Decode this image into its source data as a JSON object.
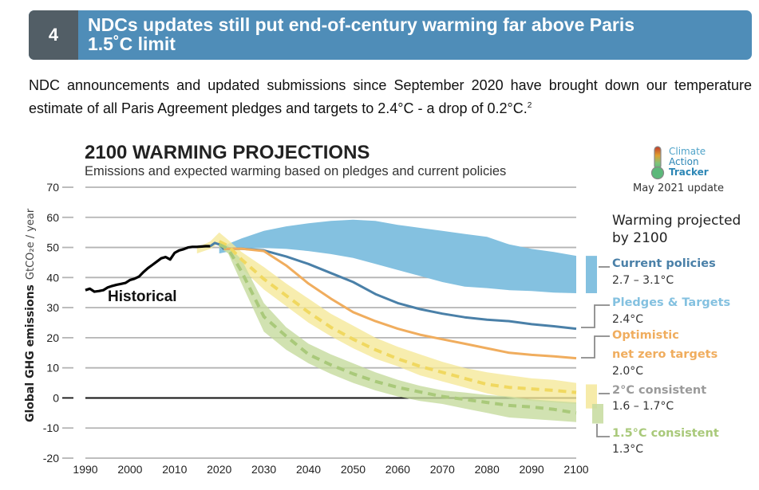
{
  "banner": {
    "number": "4",
    "title_line1": "NDCs updates still put end-of-century warming far above Paris",
    "title_line2": "1.5˚C limit",
    "color": "#4f8db8"
  },
  "intro": {
    "text": "NDC announcements and updated submissions since September 2020 have brought down our temperature estimate of all Paris Agreement pledges and targets to 2.4°C - a drop of 0.2°C.",
    "footnote": "2"
  },
  "logo": {
    "line1": "Climate",
    "line2": "Action",
    "line3": "Tracker",
    "update": "May 2021 update"
  },
  "legend": {
    "title_line1": "Warming projected",
    "title_line2": "by 2100",
    "items": [
      {
        "label": "Current policies",
        "value": "2.7 – 3.1°C",
        "color": "#4a80a8"
      },
      {
        "label": "Pledges & Targets",
        "value": "2.4°C",
        "color": "#84c1e0"
      },
      {
        "label_line1": "Optimistic",
        "label_line2": "net zero targets",
        "value": "2.0°C",
        "color": "#f0ad5e"
      },
      {
        "label": "2°C consistent",
        "value": "1.6 – 1.7°C",
        "color": "#9a9a9a"
      },
      {
        "label": "1.5°C consistent",
        "value": "1.3°C",
        "color": "#a9c97a"
      }
    ]
  },
  "chart_data": {
    "type": "line",
    "title": "2100 WARMING PROJECTIONS",
    "subtitle": "Emissions and expected warming based on pledges and current policies",
    "ylabel": "Global GHG emissions",
    "ylabel_unit": "GtCO₂e / year",
    "xlabel": "",
    "xlim": [
      1990,
      2100
    ],
    "ylim": [
      -20,
      70
    ],
    "x_ticks": [
      1990,
      2000,
      2010,
      2020,
      2030,
      2040,
      2050,
      2060,
      2070,
      2080,
      2090,
      2100
    ],
    "y_ticks": [
      70,
      60,
      50,
      40,
      30,
      20,
      10,
      0,
      -10,
      -20
    ],
    "grid": true,
    "annotation": "Historical",
    "series": [
      {
        "name": "Historical",
        "kind": "line",
        "color": "#000000",
        "x": [
          1990,
          1991,
          1992,
          1993,
          1994,
          1995,
          1996,
          1997,
          1998,
          1999,
          2000,
          2001,
          2002,
          2003,
          2004,
          2005,
          2006,
          2007,
          2008,
          2009,
          2010,
          2011,
          2012,
          2013,
          2014,
          2015,
          2016,
          2017,
          2018
        ],
        "y": [
          35.8,
          36.3,
          35.3,
          35.5,
          35.8,
          36.7,
          37.2,
          37.6,
          37.9,
          38.2,
          39.2,
          39.6,
          40.3,
          41.8,
          43.1,
          44.2,
          45.3,
          46.4,
          46.8,
          46.0,
          48.2,
          49.0,
          49.4,
          50.0,
          50.2,
          50.2,
          50.3,
          50.4,
          50.4
        ]
      },
      {
        "name": "Current policies (range)",
        "kind": "band",
        "color": "#84c1e0",
        "x": [
          2020,
          2025,
          2030,
          2035,
          2040,
          2045,
          2050,
          2055,
          2060,
          2065,
          2070,
          2075,
          2080,
          2085,
          2090,
          2095,
          2100
        ],
        "low": [
          48,
          49.5,
          49.8,
          49.5,
          48.8,
          47.8,
          46.5,
          44.5,
          42.5,
          40.5,
          38.5,
          37,
          36.5,
          35.8,
          35.5,
          35.0,
          34.8
        ],
        "high": [
          50,
          53,
          55.5,
          57,
          58,
          58.8,
          59.2,
          58.8,
          57.5,
          56.5,
          55.5,
          54.5,
          53.5,
          51.0,
          49.5,
          48.5,
          47.2
        ]
      },
      {
        "name": "Pledges & Targets",
        "kind": "line",
        "color": "#4a80a8",
        "x": [
          2018,
          2019,
          2020,
          2021,
          2025,
          2030,
          2035,
          2040,
          2045,
          2050,
          2055,
          2060,
          2065,
          2070,
          2075,
          2080,
          2085,
          2090,
          2095,
          2100
        ],
        "y": [
          50.4,
          51.5,
          51.0,
          49.5,
          49.6,
          49.0,
          47.0,
          44.5,
          41.5,
          38.5,
          34.5,
          31.5,
          29.5,
          28.0,
          26.8,
          26.0,
          25.5,
          24.5,
          23.8,
          23.0
        ]
      },
      {
        "name": "Optimistic net zero targets",
        "kind": "line",
        "color": "#f0ad5e",
        "x": [
          2021,
          2025,
          2030,
          2035,
          2040,
          2045,
          2050,
          2055,
          2060,
          2065,
          2070,
          2075,
          2080,
          2085,
          2090,
          2095,
          2100
        ],
        "y": [
          49.5,
          49.6,
          48.8,
          44.0,
          38.0,
          33.0,
          28.5,
          25.5,
          23.0,
          21.0,
          19.5,
          18.0,
          16.5,
          15.0,
          14.3,
          13.8,
          13.2
        ]
      },
      {
        "name": "2°C consistent (range)",
        "kind": "band",
        "color": "#f5e89a",
        "x": [
          2015,
          2018,
          2020,
          2022,
          2025,
          2030,
          2035,
          2040,
          2045,
          2050,
          2055,
          2060,
          2065,
          2070,
          2075,
          2080,
          2085,
          2090,
          2095,
          2100
        ],
        "low": [
          48,
          49.5,
          51.5,
          48.0,
          43.0,
          36.0,
          30.5,
          25.0,
          20.5,
          16.5,
          13.0,
          10.5,
          7.5,
          5.5,
          3.5,
          1.5,
          0,
          -1.0,
          -1.5,
          -2.0
        ],
        "high": [
          50,
          52,
          55,
          52.5,
          48.5,
          43.5,
          38.0,
          33.0,
          28.0,
          24.0,
          20.0,
          17.0,
          14.5,
          12.0,
          10.0,
          8.5,
          7.5,
          6.5,
          6.0,
          5.0
        ]
      },
      {
        "name": "2°C consistent (median)",
        "kind": "dashed-line",
        "color": "#f0d860",
        "x": [
          2020,
          2022,
          2025,
          2030,
          2035,
          2040,
          2045,
          2050,
          2055,
          2060,
          2065,
          2070,
          2075,
          2080,
          2085,
          2090,
          2095,
          2100
        ],
        "y": [
          52.0,
          50.5,
          46.0,
          39.5,
          34.0,
          28.5,
          23.5,
          19.5,
          16.0,
          13.0,
          10.5,
          8.5,
          6.5,
          4.5,
          3.5,
          3.0,
          2.5,
          1.8
        ]
      },
      {
        "name": "1.5°C consistent (range)",
        "kind": "band",
        "color": "#c6db9e",
        "x": [
          2020,
          2022,
          2025,
          2030,
          2035,
          2040,
          2045,
          2050,
          2055,
          2060,
          2065,
          2070,
          2075,
          2080,
          2085,
          2090,
          2095,
          2100
        ],
        "low": [
          50.0,
          48.0,
          38.0,
          22.0,
          16.0,
          11.5,
          8.0,
          5.0,
          2.5,
          0.5,
          -1.0,
          -2.0,
          -3.5,
          -5.0,
          -6.5,
          -7.0,
          -7.5,
          -8.0
        ],
        "high": [
          52.0,
          50.5,
          46.0,
          31.5,
          23.5,
          18.0,
          14.5,
          11.5,
          8.5,
          6.0,
          4.0,
          2.5,
          1.8,
          1.0,
          0.5,
          -0.5,
          -1.0,
          -1.5
        ]
      },
      {
        "name": "1.5°C consistent (median)",
        "kind": "dashed-line",
        "color": "#a9c97a",
        "x": [
          2020,
          2022,
          2025,
          2030,
          2035,
          2040,
          2045,
          2050,
          2055,
          2060,
          2065,
          2070,
          2075,
          2080,
          2085,
          2090,
          2095,
          2100
        ],
        "y": [
          51.0,
          49.5,
          42.0,
          27.0,
          20.5,
          14.5,
          11.0,
          8.0,
          5.5,
          3.5,
          2.0,
          0.5,
          -0.5,
          -1.5,
          -2.5,
          -3.0,
          -3.8,
          -5.0
        ]
      }
    ],
    "end_bars": [
      {
        "name": "Current policies",
        "range": [
          34.8,
          47.2
        ],
        "color": "#84c1e0"
      },
      {
        "name": "2°C consistent",
        "range": [
          -3.5,
          4.5
        ],
        "color": "#f5e89a"
      },
      {
        "name": "1.5°C consistent",
        "range": [
          -8.5,
          -2.0
        ],
        "color": "#c6db9e"
      }
    ]
  }
}
